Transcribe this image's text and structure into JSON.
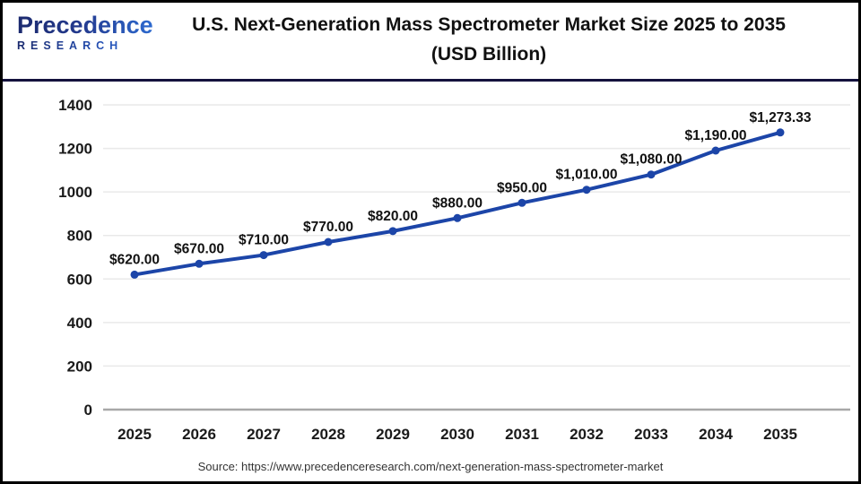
{
  "header": {
    "brand": {
      "wordmark": "Precedence",
      "tagline": "RESEARCH",
      "navy": "#1b2a6e",
      "blue": "#2e6fd6"
    },
    "title": "U.S. Next-Generation Mass Spectrometer Market Size 2025 to 2035",
    "subtitle": "(USD Billion)"
  },
  "chart_data": {
    "type": "line",
    "title": "U.S. Next-Generation Mass Spectrometer Market Size 2025 to 2035 (USD Billion)",
    "categories": [
      "2025",
      "2026",
      "2027",
      "2028",
      "2029",
      "2030",
      "2031",
      "2032",
      "2033",
      "2034",
      "2035"
    ],
    "values": [
      620,
      670,
      710,
      770,
      820,
      880,
      950,
      1010,
      1080,
      1190,
      1273.33
    ],
    "point_labels": [
      "$620.00",
      "$670.00",
      "$710.00",
      "$770.00",
      "$820.00",
      "$880.00",
      "$950.00",
      "$1,010.00",
      "$1,080.00",
      "$1,190.00",
      "$1,273.33"
    ],
    "xlabel": "",
    "ylabel": "",
    "ylim": [
      0,
      1400
    ],
    "ytick_step": 200,
    "grid": true,
    "legend_position": "none",
    "line_color": "#1c45a8",
    "marker_color": "#1c45a8",
    "gridline_color": "#e9e9e9",
    "zeroline_color": "#a8a8a8"
  },
  "footer": {
    "source": "Source: https://www.precedenceresearch.com/next-generation-mass-spectrometer-market"
  }
}
